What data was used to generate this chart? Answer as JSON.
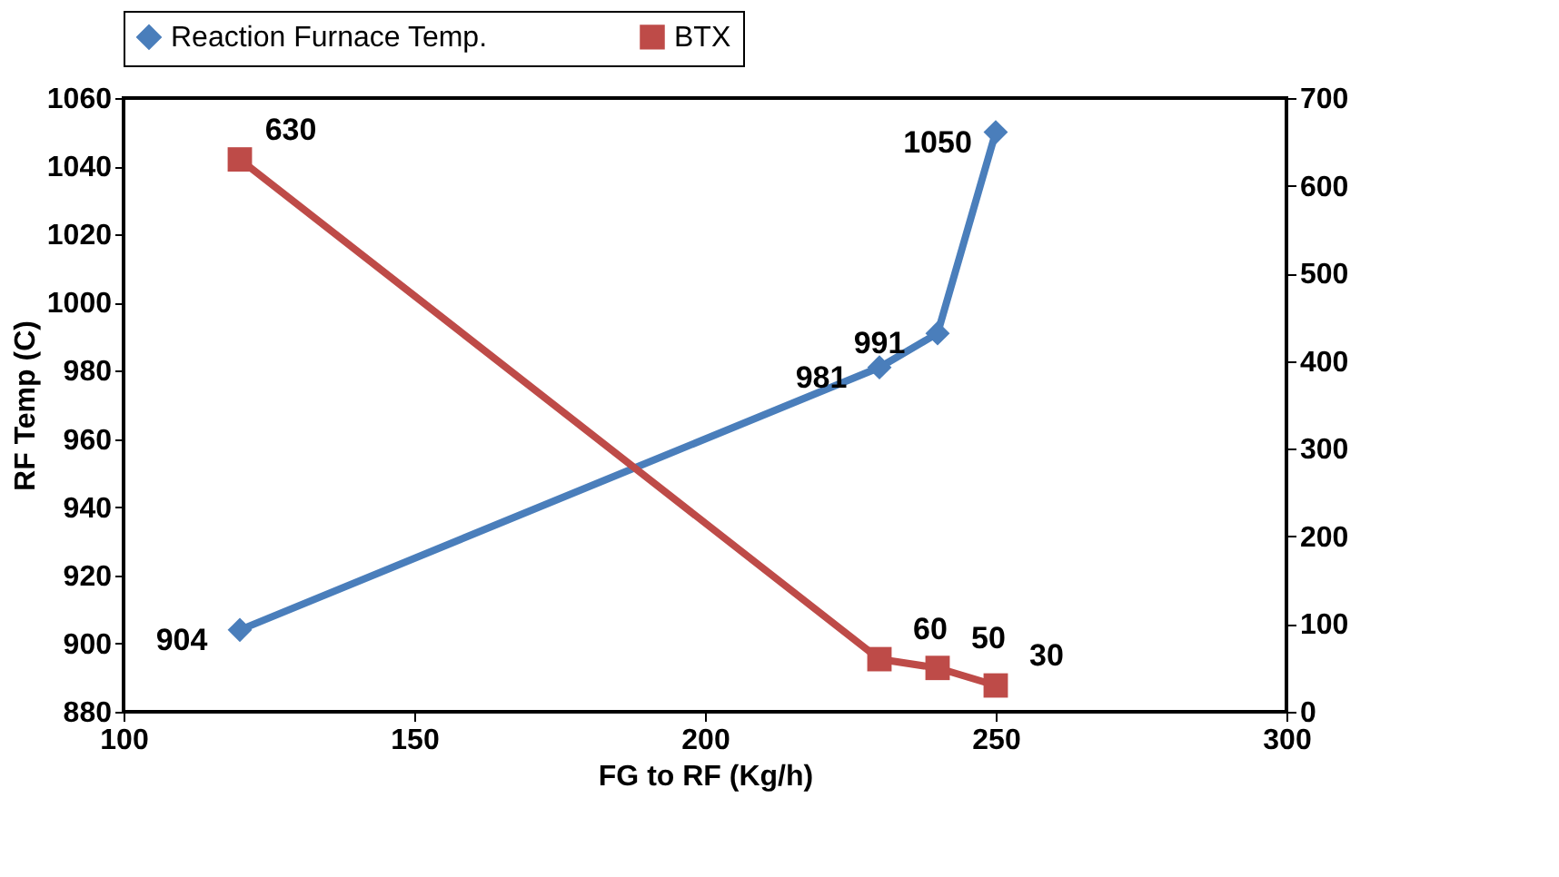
{
  "chart_data": {
    "type": "line",
    "xlabel": "FG to RF (Kg/h)",
    "ylabel": "RF Temp (C)",
    "x": [
      120,
      230,
      240,
      250
    ],
    "series": [
      {
        "name": "Reaction Furnace Temp.",
        "color": "#4a7ebb",
        "values": [
          904,
          981,
          991,
          1050
        ],
        "marker": "diamond"
      },
      {
        "name": "BTX",
        "color": "#be4b48",
        "values": [
          630,
          60,
          50,
          30
        ],
        "marker": "square",
        "axis": "y2"
      }
    ],
    "xlim": [
      100,
      300
    ],
    "xticks": [
      100,
      150,
      200,
      250,
      300
    ],
    "ylim": [
      880,
      1060
    ],
    "yticks": [
      880,
      900,
      920,
      940,
      960,
      980,
      1000,
      1020,
      1040,
      1060
    ],
    "y2lim": [
      0,
      700
    ],
    "y2ticks": [
      0,
      100,
      200,
      300,
      400,
      500,
      600,
      700
    ],
    "data_labels": true,
    "legend": "top",
    "grid": false
  }
}
